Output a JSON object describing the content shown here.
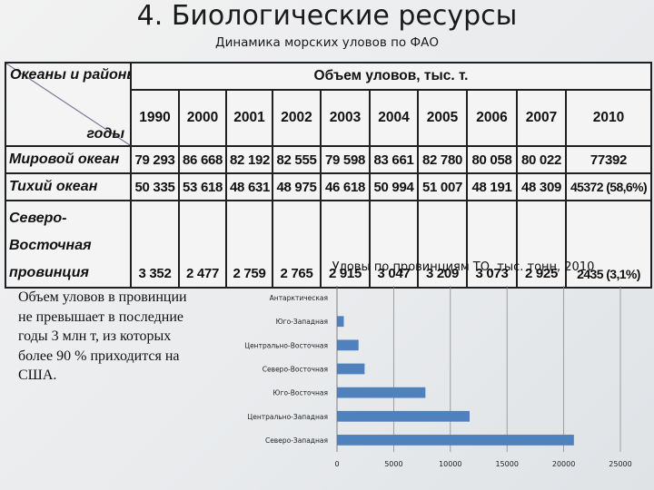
{
  "slide": {
    "title": "4. Биологические ресурсы",
    "subtitle": "Динамика морских уловов по ФАО"
  },
  "table": {
    "corner_top": "Океаны и районы",
    "corner_bottom": "годы",
    "group_header": "Объем уловов, тыс. т.",
    "years": [
      "1990",
      "2000",
      "2001",
      "2002",
      "2003",
      "2004",
      "2005",
      "2006",
      "2007",
      "2010"
    ],
    "rows": [
      {
        "label": "Мировой океан",
        "values": [
          "79 293",
          "86 668",
          "82 192",
          "82 555",
          "79 598",
          "83 661",
          "82 780",
          "80 058",
          "80 022",
          "77392"
        ]
      },
      {
        "label": "Тихий океан",
        "values": [
          "50 335",
          "53 618",
          "48 631",
          "48 975",
          "46 618",
          "50 994",
          "51 007",
          "48 191",
          "48 309",
          "45372 (58,6%)"
        ]
      },
      {
        "label": "Северо-Восточная провинция",
        "values": [
          "3 352",
          "2 477",
          "2 759",
          "2 765",
          "2 915",
          "3 047",
          "3 209",
          "3 073",
          "2 925",
          "2435 (3,1%)"
        ]
      }
    ]
  },
  "note": "Объем уловов в провинции не превышает в последние годы 3 млн т, из которых более 90 % приходится на США.",
  "chart_data": {
    "type": "bar",
    "orientation": "horizontal",
    "title": "Уловы по провинциям ТО, тыс. тонн, 2010",
    "categories": [
      "Антарктическая",
      "Юго-Западная",
      "Центрально-Восточная",
      "Северо-Восточная",
      "Юго-Восточная",
      "Центрально-Западная",
      "Северо-Западная"
    ],
    "values": [
      0,
      600,
      1900,
      2435,
      7800,
      11700,
      20900
    ],
    "xlim": [
      0,
      25000
    ],
    "xticks": [
      "0",
      "5000",
      "10000",
      "15000",
      "20000",
      "25000"
    ],
    "grid": true,
    "bar_color": "#4f81bd",
    "grid_color": "#8c8c8c"
  }
}
